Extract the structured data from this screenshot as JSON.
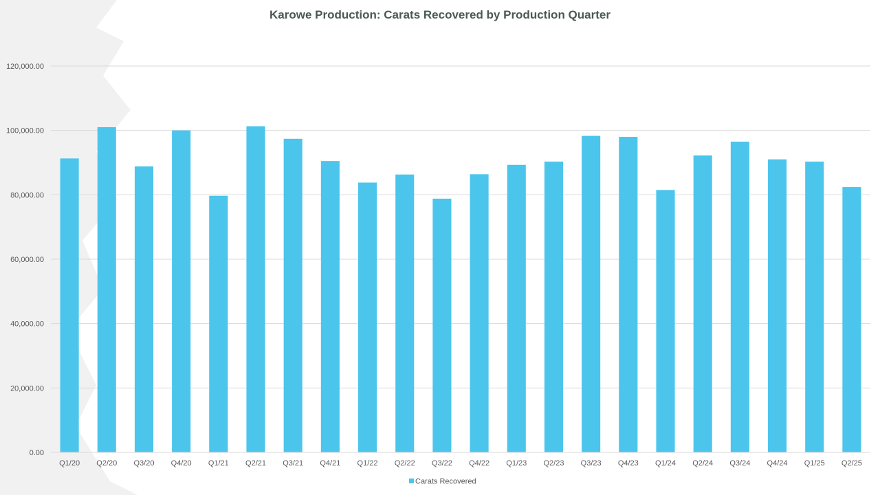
{
  "chart_data": {
    "type": "bar",
    "title": "Karowe Production: Carats Recovered by Production Quarter",
    "xlabel": "",
    "ylabel": "",
    "ylim": [
      0,
      120000
    ],
    "ytick_step": 20000,
    "ytick_labels": [
      "0.00",
      "20,000.00",
      "40,000.00",
      "60,000.00",
      "80,000.00",
      "100,000.00",
      "120,000.00"
    ],
    "grid": true,
    "legend_position": "bottom",
    "categories": [
      "Q1/20",
      "Q2/20",
      "Q3/20",
      "Q4/20",
      "Q1/21",
      "Q2/21",
      "Q3/21",
      "Q4/21",
      "Q1/22",
      "Q2/22",
      "Q3/22",
      "Q4/22",
      "Q1/23",
      "Q2/23",
      "Q3/23",
      "Q4/23",
      "Q1/24",
      "Q2/24",
      "Q3/24",
      "Q4/24",
      "Q1/25",
      "Q2/25"
    ],
    "series": [
      {
        "name": "Carats Recovered",
        "color": "#4bc5ec",
        "values": [
          91300,
          101000,
          88800,
          100000,
          79700,
          101300,
          97400,
          90500,
          83800,
          86300,
          78800,
          86400,
          89300,
          90300,
          98300,
          98000,
          81500,
          92200,
          96500,
          91000,
          90300,
          82400
        ]
      }
    ]
  }
}
